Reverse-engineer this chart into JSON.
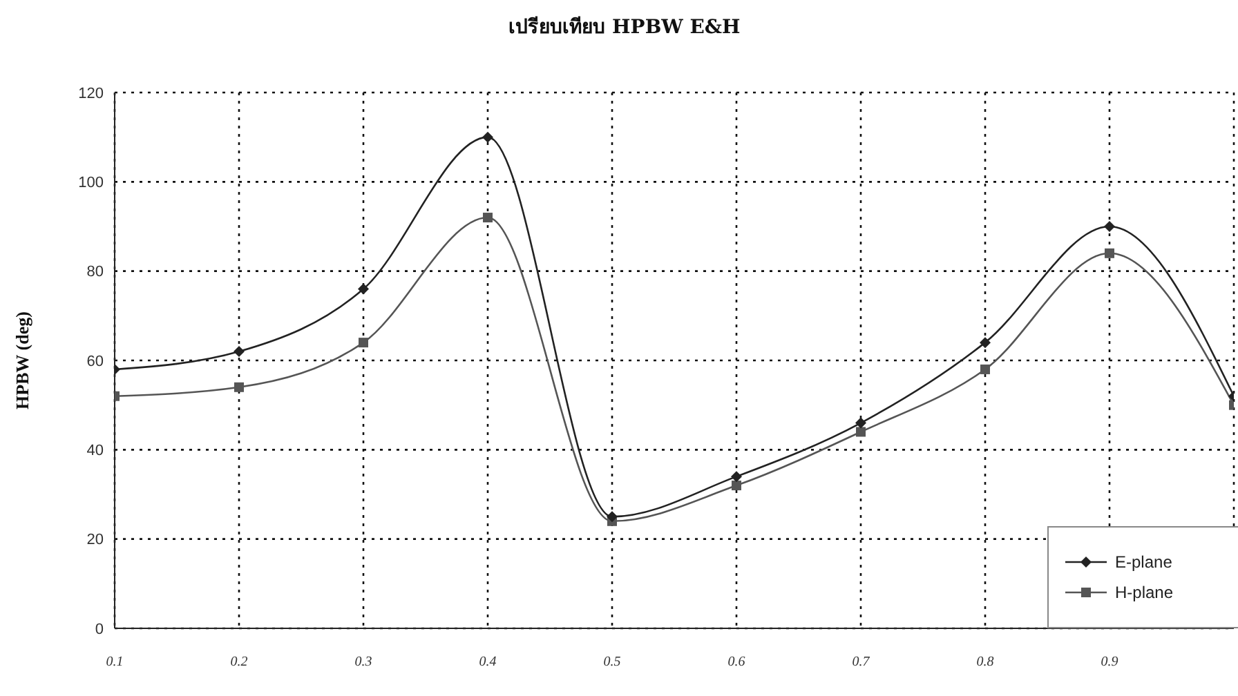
{
  "chart_data": {
    "type": "line",
    "title": "เปรียบเทียบ HPBW E&H",
    "ylabel": "HPBW (deg)",
    "categories": [
      "0.1",
      "0.2",
      "0.3",
      "0.4",
      "0.5",
      "0.6",
      "0.7",
      "0.8",
      "0.9",
      null
    ],
    "series": [
      {
        "name": "E-plane",
        "color": "#222222",
        "marker": "diamond",
        "values": [
          58,
          62,
          76,
          110,
          25,
          34,
          46,
          64,
          90,
          52
        ]
      },
      {
        "name": "H-plane",
        "color": "#555555",
        "marker": "square",
        "values": [
          52,
          54,
          64,
          92,
          24,
          32,
          44,
          58,
          84,
          50
        ]
      }
    ],
    "ylim": [
      0,
      120
    ],
    "yticks": [
      0,
      20,
      40,
      60,
      80,
      100,
      120
    ],
    "grid": true,
    "legend": "bottom right",
    "line_style": "solid"
  }
}
